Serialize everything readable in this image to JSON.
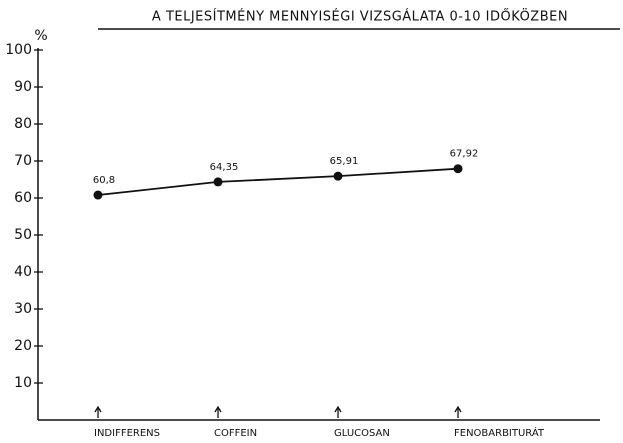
{
  "chart_data": {
    "type": "line",
    "title": "A TELJESÍTMÉNY MENNYISÉGI VIZSGÁLATA 0-10 IDŐKÖZBEN",
    "y_label": "%",
    "categories": [
      "INDIFFERENS",
      "COFFEIN",
      "GLUCOSAN",
      "FENOBARBITURÁT"
    ],
    "series": [
      {
        "name": null,
        "color": "#111111",
        "values": [
          60.8,
          64.35,
          65.91,
          67.92
        ],
        "value_labels": [
          "60,8",
          "64,35",
          "65,91",
          "67,92"
        ]
      }
    ],
    "ylim": [
      0,
      100
    ],
    "yticks": [
      10,
      20,
      30,
      40,
      50,
      60,
      70,
      80,
      90,
      100
    ]
  }
}
